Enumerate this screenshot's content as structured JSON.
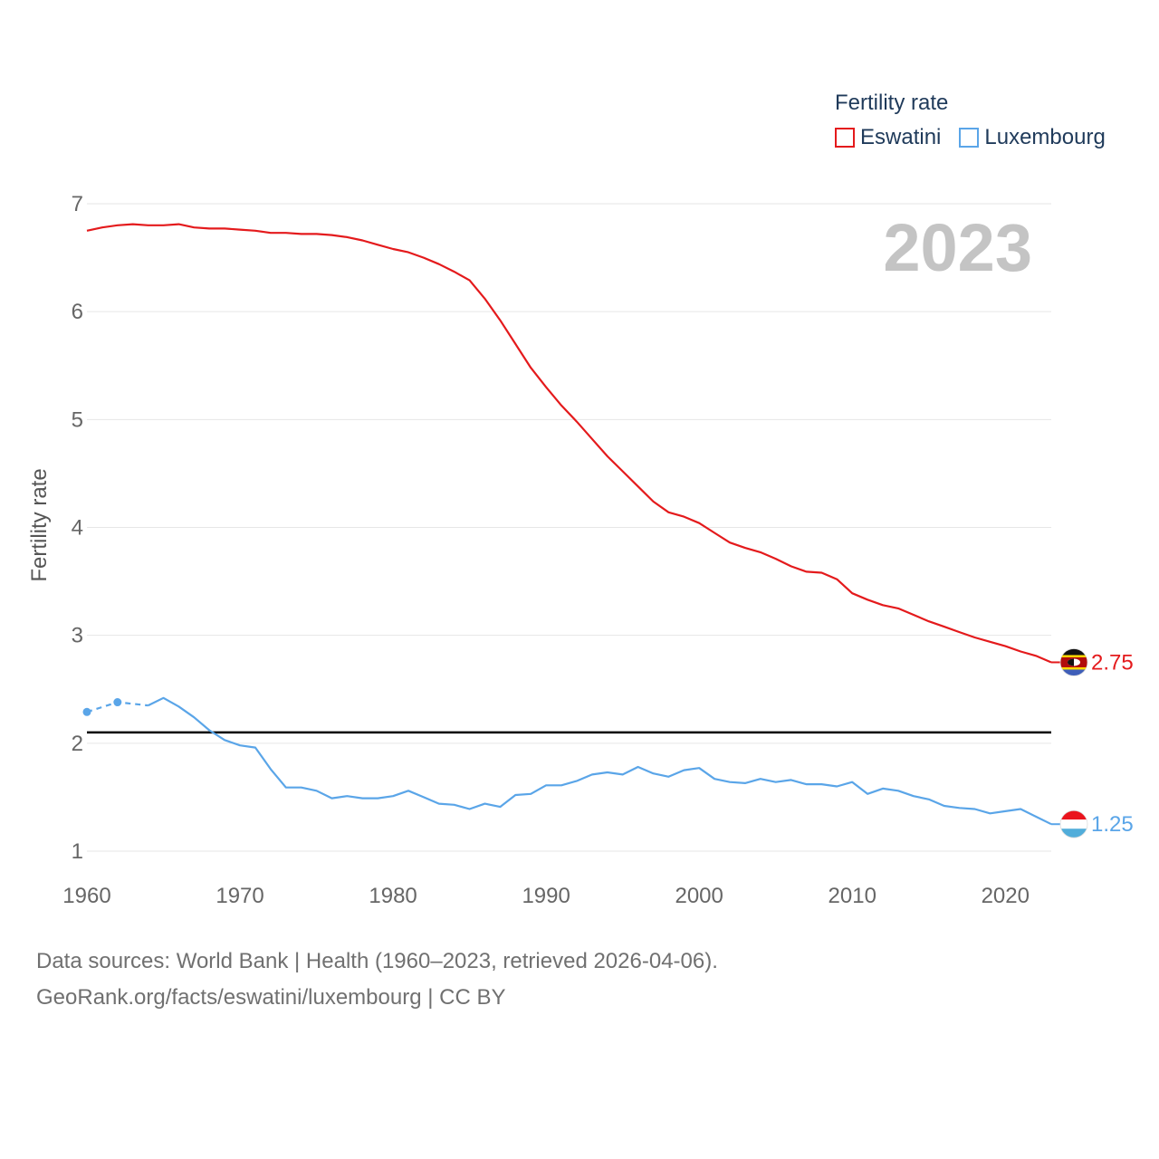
{
  "legend": {
    "title": "Fertility rate",
    "items": [
      {
        "label": "Eswatini",
        "color": "#e41a1c"
      },
      {
        "label": "Luxembourg",
        "color": "#5aa5e8"
      }
    ]
  },
  "year_label": "2023",
  "reference_color": "#000000",
  "footer": {
    "line1": "Data sources: World Bank | Health (1960–2023, retrieved 2026-04-06).",
    "line2": "GeoRank.org/facts/eswatini/luxembourg | CC BY"
  },
  "chart_data": {
    "type": "line",
    "title": "Fertility rate",
    "xlabel": "",
    "ylabel": "Fertility rate",
    "xlim": [
      1960,
      2023
    ],
    "ylim": [
      1,
      7
    ],
    "x_ticks": [
      "1960",
      "1970",
      "1980",
      "1990",
      "2000",
      "2010",
      "2020"
    ],
    "y_ticks": [
      "1",
      "2",
      "3",
      "4",
      "5",
      "6",
      "7"
    ],
    "reference_line": 2.1,
    "year_watermark": "2023",
    "series": [
      {
        "name": "Eswatini",
        "color": "#e41a1c",
        "end_label": "2.75",
        "x": [
          1960,
          1961,
          1962,
          1963,
          1964,
          1965,
          1966,
          1967,
          1968,
          1969,
          1970,
          1971,
          1972,
          1973,
          1974,
          1975,
          1976,
          1977,
          1978,
          1979,
          1980,
          1981,
          1982,
          1983,
          1984,
          1985,
          1986,
          1987,
          1988,
          1989,
          1990,
          1991,
          1992,
          1993,
          1994,
          1995,
          1996,
          1997,
          1998,
          1999,
          2000,
          2001,
          2002,
          2003,
          2004,
          2005,
          2006,
          2007,
          2008,
          2009,
          2010,
          2011,
          2012,
          2013,
          2014,
          2015,
          2016,
          2017,
          2018,
          2019,
          2020,
          2021,
          2022,
          2023
        ],
        "values": [
          6.75,
          6.78,
          6.8,
          6.81,
          6.8,
          6.8,
          6.81,
          6.78,
          6.77,
          6.77,
          6.76,
          6.75,
          6.73,
          6.73,
          6.72,
          6.72,
          6.71,
          6.69,
          6.66,
          6.62,
          6.58,
          6.55,
          6.5,
          6.44,
          6.37,
          6.29,
          6.12,
          5.92,
          5.7,
          5.48,
          5.3,
          5.13,
          4.98,
          4.82,
          4.66,
          4.52,
          4.38,
          4.24,
          4.14,
          4.1,
          4.04,
          3.95,
          3.86,
          3.81,
          3.77,
          3.71,
          3.64,
          3.59,
          3.58,
          3.52,
          3.39,
          3.33,
          3.28,
          3.25,
          3.19,
          3.13,
          3.08,
          3.03,
          2.98,
          2.94,
          2.9,
          2.85,
          2.81,
          2.75
        ]
      },
      {
        "name": "Luxembourg",
        "color": "#5aa5e8",
        "end_label": "1.25",
        "x": [
          1960,
          1962,
          1964,
          1965,
          1966,
          1967,
          1968,
          1969,
          1970,
          1971,
          1972,
          1973,
          1974,
          1975,
          1976,
          1977,
          1978,
          1979,
          1980,
          1981,
          1982,
          1983,
          1984,
          1985,
          1986,
          1987,
          1988,
          1989,
          1990,
          1991,
          1992,
          1993,
          1994,
          1995,
          1996,
          1997,
          1998,
          1999,
          2000,
          2001,
          2002,
          2003,
          2004,
          2005,
          2006,
          2007,
          2008,
          2009,
          2010,
          2011,
          2012,
          2013,
          2014,
          2015,
          2016,
          2017,
          2018,
          2019,
          2020,
          2021,
          2022,
          2023
        ],
        "values": [
          2.29,
          2.38,
          2.35,
          2.42,
          2.34,
          2.24,
          2.12,
          2.03,
          1.98,
          1.96,
          1.76,
          1.59,
          1.59,
          1.56,
          1.49,
          1.51,
          1.49,
          1.49,
          1.51,
          1.56,
          1.5,
          1.44,
          1.43,
          1.39,
          1.44,
          1.41,
          1.52,
          1.53,
          1.61,
          1.61,
          1.65,
          1.71,
          1.73,
          1.71,
          1.78,
          1.72,
          1.69,
          1.75,
          1.77,
          1.67,
          1.64,
          1.63,
          1.67,
          1.64,
          1.66,
          1.62,
          1.62,
          1.6,
          1.64,
          1.53,
          1.58,
          1.56,
          1.51,
          1.48,
          1.42,
          1.4,
          1.39,
          1.35,
          1.37,
          1.39,
          1.32,
          1.25
        ],
        "dashed_segments": [
          [
            1960,
            1962
          ],
          [
            1962,
            1964
          ]
        ],
        "markers": [
          1960,
          1962
        ]
      }
    ]
  }
}
